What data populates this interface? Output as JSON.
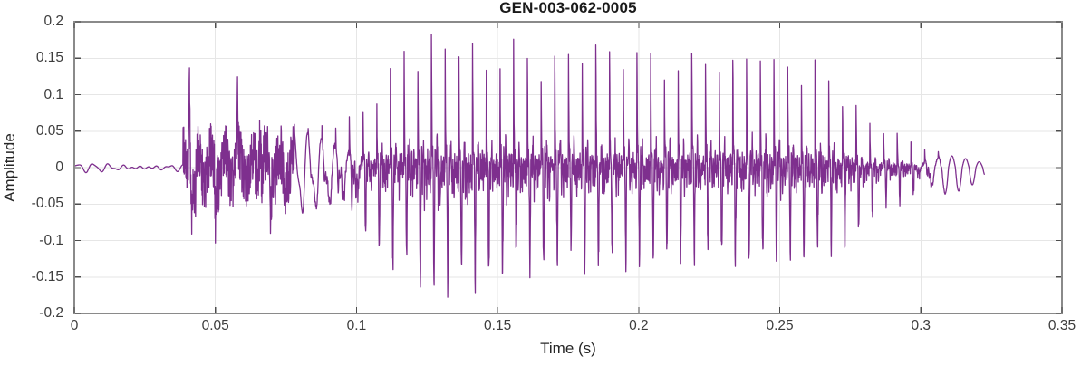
{
  "chart_data": {
    "type": "line",
    "title": "GEN-003-062-0005",
    "xlabel": "Time (s)",
    "ylabel": "Amplitude",
    "xlim": [
      0,
      0.35
    ],
    "ylim": [
      -0.2,
      0.2
    ],
    "xticks": [
      0,
      0.05,
      0.1,
      0.15,
      0.2,
      0.25,
      0.3,
      0.35
    ],
    "yticks": [
      -0.2,
      -0.15,
      -0.1,
      -0.05,
      0,
      0.05,
      0.1,
      0.15,
      0.2
    ],
    "grid": true,
    "legend": false,
    "style": {
      "line_color": "#7E2F8E",
      "grid_color": "#e6e6e6",
      "box_color": "#8a8a8a",
      "tick_color": "#4d4d4d",
      "text_color": "#262626",
      "background": "#ffffff"
    },
    "signal": {
      "description": "speech audio waveform: silence, plosive burst at 0.041 s, noisy band, voiced vowel growing to peak ~0.19 near 0.127 s, sustained ~0.17 until 0.27 s, decay to silence by 0.3225 s",
      "duration_s": 0.3225,
      "sample_step_s": 8e-05,
      "f0_hz": 206,
      "silence_end_s": 0.0385,
      "voiced_start_s": 0.078,
      "pre_wiggle_amp": 0.0055,
      "burst": {
        "t": 0.0408,
        "peak": 0.128,
        "trough": -0.055,
        "trough_t": 0.0417
      },
      "noise_band_amp": 0.045,
      "noise_spikes": [
        [
          0.0428,
          -0.062
        ],
        [
          0.05,
          -0.06
        ],
        [
          0.0578,
          0.07
        ],
        [
          0.0658,
          0.072
        ],
        [
          0.0695,
          -0.065
        ]
      ],
      "envelope": [
        [
          0.078,
          0.05,
          0.055
        ],
        [
          0.088,
          0.062,
          0.06
        ],
        [
          0.098,
          0.072,
          0.08
        ],
        [
          0.105,
          0.1,
          0.1
        ],
        [
          0.112,
          0.15,
          0.12
        ],
        [
          0.118,
          0.185,
          0.13
        ],
        [
          0.124,
          0.185,
          0.158
        ],
        [
          0.127,
          0.19,
          0.155
        ],
        [
          0.13,
          0.17,
          0.15
        ],
        [
          0.136,
          0.178,
          0.142
        ],
        [
          0.142,
          0.185,
          0.152
        ],
        [
          0.148,
          0.158,
          0.148
        ],
        [
          0.153,
          0.175,
          0.13
        ],
        [
          0.16,
          0.16,
          0.12
        ],
        [
          0.168,
          0.172,
          0.125
        ],
        [
          0.176,
          0.168,
          0.12
        ],
        [
          0.184,
          0.165,
          0.118
        ],
        [
          0.192,
          0.162,
          0.115
        ],
        [
          0.2,
          0.168,
          0.12
        ],
        [
          0.208,
          0.163,
          0.115
        ],
        [
          0.216,
          0.168,
          0.118
        ],
        [
          0.224,
          0.172,
          0.12
        ],
        [
          0.232,
          0.17,
          0.118
        ],
        [
          0.24,
          0.185,
          0.12
        ],
        [
          0.246,
          0.172,
          0.115
        ],
        [
          0.252,
          0.168,
          0.112
        ],
        [
          0.258,
          0.158,
          0.108
        ],
        [
          0.264,
          0.15,
          0.1
        ],
        [
          0.27,
          0.125,
          0.1
        ],
        [
          0.275,
          0.1,
          0.095
        ],
        [
          0.28,
          0.078,
          0.075
        ],
        [
          0.285,
          0.062,
          0.06
        ],
        [
          0.29,
          0.052,
          0.048
        ],
        [
          0.295,
          0.042,
          0.038
        ],
        [
          0.3,
          0.032,
          0.032
        ],
        [
          0.306,
          0.026,
          0.026
        ],
        [
          0.312,
          0.02,
          0.02
        ],
        [
          0.318,
          0.014,
          0.014
        ],
        [
          0.3225,
          0.008,
          0.008
        ]
      ]
    }
  }
}
